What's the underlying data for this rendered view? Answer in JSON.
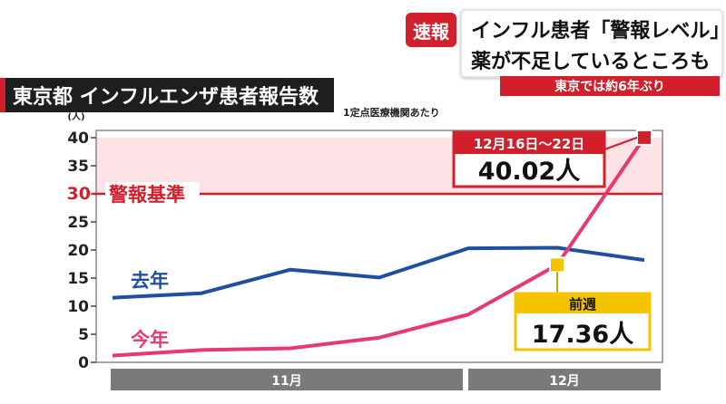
{
  "caption": {
    "badge": "速報",
    "line1": "インフル患者「警報レベル」",
    "line2": "薬が不足しているところも",
    "sub": "東京では約6年ぶり"
  },
  "chart_title": "東京都 インフルエンザ患者報告数",
  "note": "1定点医療機関あたり",
  "colors": {
    "accent": "#d11f2b",
    "last_year": "#1f4fa0",
    "this_year": "#e8386f",
    "highlight_box": "#f5c400"
  },
  "chart_data": {
    "type": "line",
    "ylabel": "(人)",
    "ylim": [
      0,
      40
    ],
    "yticks": [
      0,
      5,
      10,
      15,
      20,
      25,
      30,
      35,
      40
    ],
    "x": [
      1,
      2,
      3,
      4,
      5,
      6,
      7
    ],
    "x_groups": [
      {
        "label": "11月",
        "from": 1,
        "to": 5
      },
      {
        "label": "12月",
        "from": 5,
        "to": 7
      }
    ],
    "series": [
      {
        "name": "去年",
        "values": [
          11.5,
          12.3,
          16.5,
          15.1,
          20.3,
          20.4,
          18.2
        ]
      },
      {
        "name": "今年",
        "values": [
          1.2,
          2.2,
          2.5,
          4.4,
          8.5,
          17.36,
          40.02
        ]
      }
    ],
    "threshold": {
      "value": 30,
      "label": "警報基準"
    },
    "annotations": [
      {
        "label": "12月16日～22日",
        "value_text": "40.02人"
      },
      {
        "label": "前週",
        "value_text": "17.36人"
      }
    ]
  }
}
